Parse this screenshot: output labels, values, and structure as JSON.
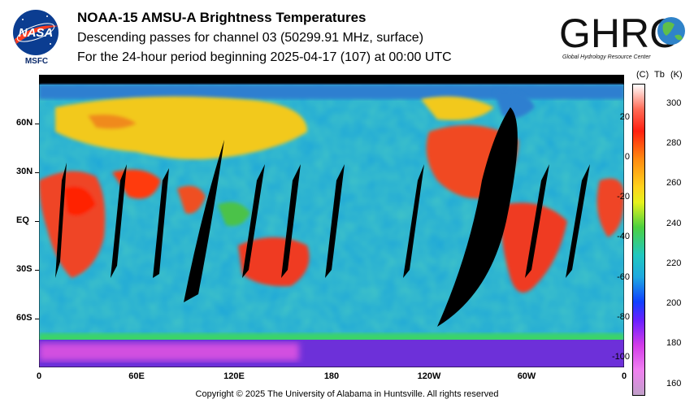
{
  "header": {
    "title": "NOAA-15 AMSU-A Brightness Temperatures",
    "subtitle1": "Descending passes for channel 03 (50299.91 MHz, surface)",
    "subtitle2": "For the 24-hour period beginning 2025-04-17 (107) at 00:00 UTC"
  },
  "logos": {
    "nasa_text": "NASA",
    "msfc_text": "MSFC",
    "ghrc_text": "GHRC",
    "ghrc_subtext": "Global Hydrology Resource Center"
  },
  "map": {
    "lat_labels": [
      "60N",
      "30N",
      "EQ",
      "30S",
      "60S"
    ],
    "lat_values": [
      60,
      30,
      0,
      -30,
      -60
    ],
    "lon_labels": [
      "0",
      "60E",
      "120E",
      "180",
      "120W",
      "60W",
      "0"
    ],
    "lon_values": [
      0,
      60,
      120,
      180,
      240,
      300,
      360
    ],
    "colors": {
      "ocean": "#1ea9d6",
      "warm_land": "#f0402a",
      "hot_land": "#ff2a00",
      "mid_land": "#f5d21a",
      "cold": "#7b2fd8",
      "gap": "#000000"
    }
  },
  "colorbar": {
    "header_c": "(C)",
    "header_tb": "Tb",
    "header_k": "(K)",
    "celsius_ticks": [
      "20",
      "0",
      "-20",
      "-40",
      "-60",
      "-80",
      "-100"
    ],
    "celsius_values": [
      20,
      0,
      -20,
      -40,
      -60,
      -80,
      -100
    ],
    "kelvin_ticks": [
      "300",
      "280",
      "260",
      "240",
      "220",
      "200",
      "180",
      "160"
    ],
    "kelvin_values": [
      300,
      280,
      260,
      240,
      220,
      200,
      180,
      160
    ],
    "k_min": 155,
    "k_max": 310
  },
  "footer": {
    "copyright": "Copyright © 2025 The University of Alabama in Huntsville.  All rights reserved"
  }
}
